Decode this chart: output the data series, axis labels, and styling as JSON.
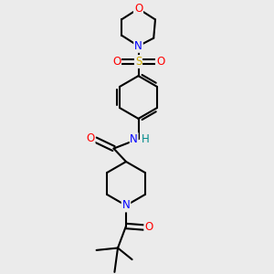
{
  "background_color": "#ebebeb",
  "atom_colors": {
    "O": "#ff0000",
    "N": "#0000ff",
    "S": "#ccaa00",
    "C": "#000000",
    "H": "#008b8b"
  },
  "bond_color": "#000000",
  "bond_width": 1.5,
  "figsize": [
    3.0,
    3.0
  ],
  "dpi": 100,
  "xlim": [
    0,
    10
  ],
  "ylim": [
    0,
    10
  ]
}
